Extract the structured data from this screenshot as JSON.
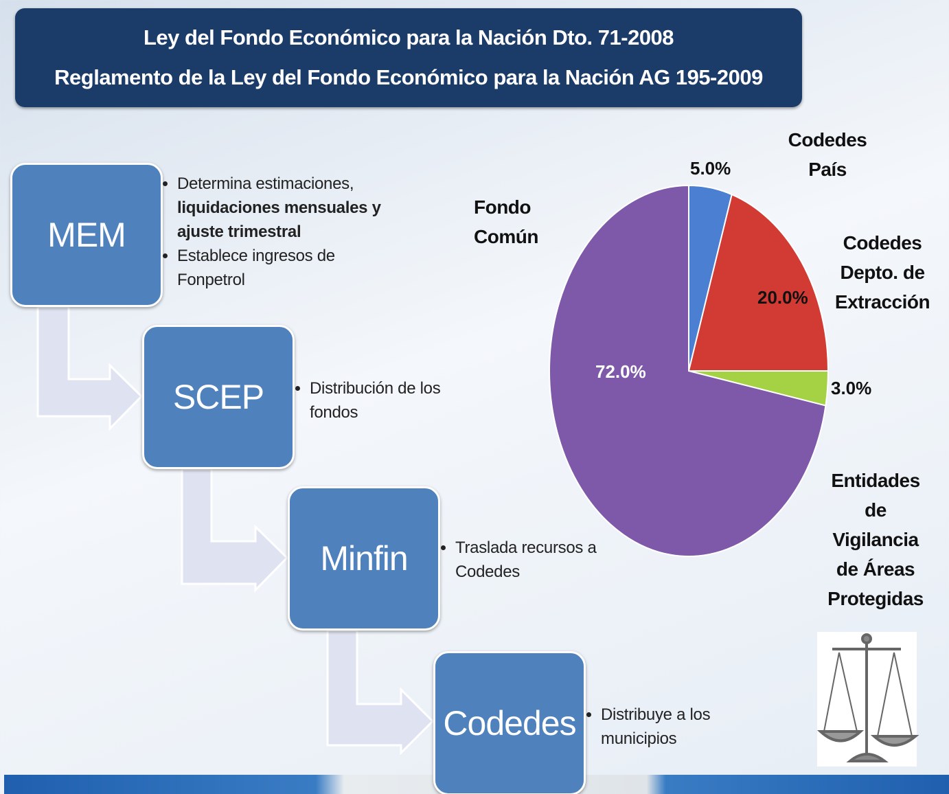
{
  "header": {
    "title": "Ley del Fondo Económico para la Nación Dto. 71-2008",
    "subtitle": "Reglamento de la Ley del Fondo Económico para la Nación AG 195-2009"
  },
  "steps": [
    {
      "label": "MEM",
      "bullets": [
        {
          "text": "Determina estimaciones,",
          "emphasis": "liquidaciones mensuales y ajuste trimestral"
        },
        {
          "text": "Establece ingresos de Fonpetrol"
        }
      ]
    },
    {
      "label": "SCEP",
      "bullets": [
        {
          "text": "Distribución de los fondos"
        }
      ]
    },
    {
      "label": "Minfin",
      "bullets": [
        {
          "text": "Traslada recursos a Codedes"
        }
      ]
    },
    {
      "label": "Codedes",
      "bullets": [
        {
          "text": "Distribuye a los municipios"
        }
      ]
    }
  ],
  "chart_data": {
    "type": "pie",
    "categories": [
      "Codedes País",
      "Codedes Depto. de Extracción",
      "Entidades de Vigilancia de Áreas Protegidas",
      "Fondo Común"
    ],
    "values": [
      5,
      20,
      3,
      72
    ],
    "value_labels": [
      "5.0%",
      "20.0%",
      "3.0%",
      "72.0%"
    ],
    "colors": [
      "#4a7fd2",
      "#d23a34",
      "#a5d245",
      "#7e58a9"
    ]
  }
}
